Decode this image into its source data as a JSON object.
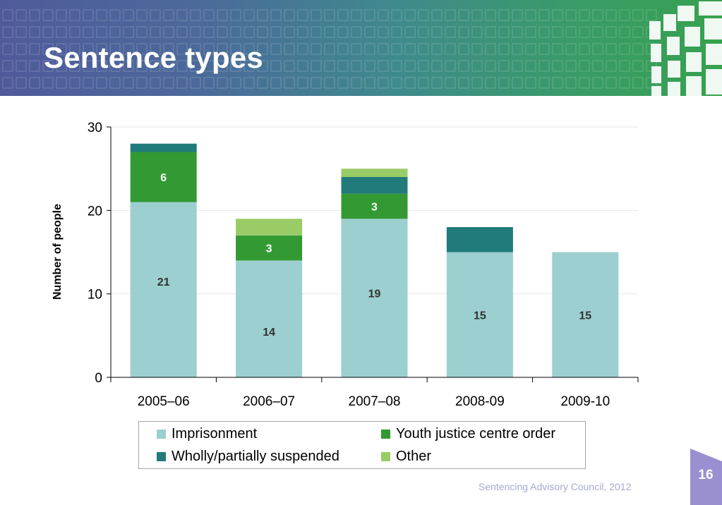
{
  "slide": {
    "title": "Sentence types",
    "footer": "Sentencing Advisory Council, 2012",
    "page_number": "16"
  },
  "colors": {
    "imprisonment": "#9ccfcf",
    "youth_justice": "#339933",
    "suspended": "#217b7a",
    "other": "#99cc66"
  },
  "chart_data": {
    "type": "bar",
    "stacked": true,
    "title": "",
    "xlabel": "",
    "ylabel": "Number of people",
    "ylim": [
      0,
      30
    ],
    "yticks": [
      0,
      10,
      20,
      30
    ],
    "categories": [
      "2005–06",
      "2006–07",
      "2007–08",
      "2008-09",
      "2009-10"
    ],
    "series": [
      {
        "name": "Imprisonment",
        "key": "imprisonment",
        "values": [
          21,
          14,
          19,
          15,
          15
        ],
        "labels": [
          "21",
          "14",
          "19",
          "15",
          "15"
        ]
      },
      {
        "name": "Youth justice centre order",
        "key": "youth_justice",
        "values": [
          6,
          3,
          3,
          0,
          0
        ],
        "labels": [
          "6",
          "3",
          "3",
          "",
          ""
        ]
      },
      {
        "name": "Wholly/partially suspended",
        "key": "suspended",
        "values": [
          1,
          0,
          2,
          3,
          0
        ],
        "labels": [
          "",
          "",
          "",
          "",
          ""
        ]
      },
      {
        "name": "Other",
        "key": "other",
        "values": [
          0,
          2,
          1,
          0,
          0
        ],
        "labels": [
          "",
          "",
          "",
          "",
          ""
        ]
      }
    ],
    "legend": {
      "position": "bottom",
      "order": [
        "Imprisonment",
        "Youth justice centre order",
        "Wholly/partially suspended",
        "Other"
      ]
    },
    "grid": true
  }
}
